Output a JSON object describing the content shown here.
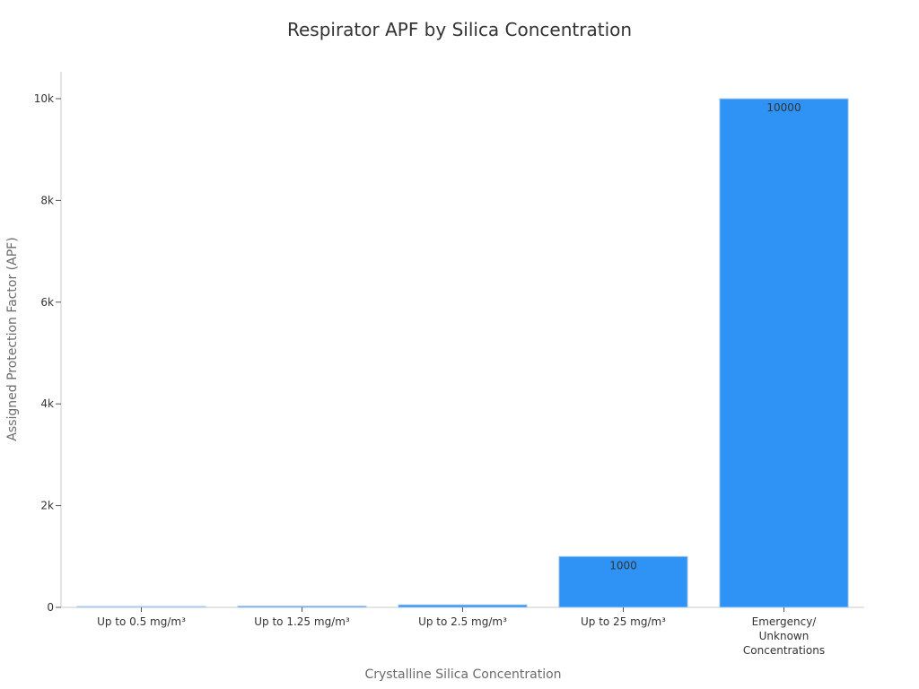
{
  "chart_data": {
    "type": "bar",
    "title": "Respirator APF by Silica Concentration",
    "xlabel": "Crystalline Silica Concentration",
    "ylabel": "Assigned Protection Factor (APF)",
    "categories": [
      "Up to 0.5 mg/m³",
      "Up to 1.25 mg/m³",
      "Up to 2.5 mg/m³",
      "Up to 25 mg/m³",
      "Emergency/\nUnknown\nConcentrations"
    ],
    "values": [
      10,
      25,
      50,
      1000,
      10000
    ],
    "data_labels": [
      "",
      "",
      "",
      "1000",
      "10000"
    ],
    "ylim": [
      0,
      10500
    ],
    "yticks": [
      0,
      2000,
      4000,
      6000,
      8000,
      10000
    ],
    "ytick_labels": [
      "0",
      "2k",
      "4k",
      "6k",
      "8k",
      "10k"
    ],
    "grid": false,
    "bar_color": "#2e93f5",
    "bar_edge_color": "#a9c8e8"
  }
}
